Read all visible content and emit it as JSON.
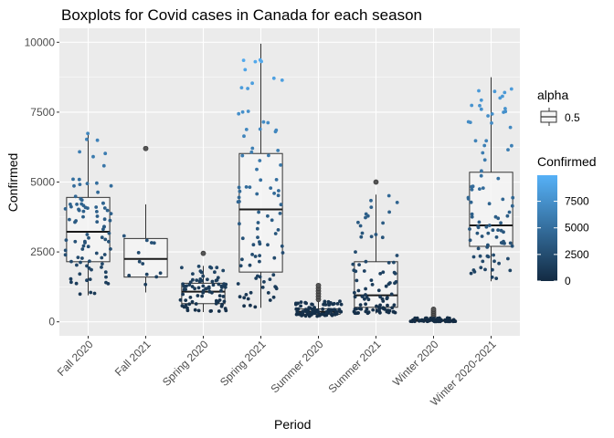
{
  "chart_data": {
    "type": "boxplot",
    "title": "Boxplots for Covid cases in Canada for each season",
    "xlabel": "Period",
    "ylabel": "Confirmed",
    "ylim": [
      -500,
      10500
    ],
    "y_ticks": [
      0,
      2500,
      5000,
      7500,
      10000
    ],
    "y_tick_labels": [
      "0",
      "2500",
      "5000",
      "7500",
      "10000"
    ],
    "grid": true,
    "categories": [
      "Fall 2020",
      "Fall 2021",
      "Spring 2020",
      "Spring 2021",
      "Summer 2020",
      "Summer 2021",
      "Winter 2020",
      "Winter 2020-2021"
    ],
    "boxes": [
      {
        "category": "Fall 2020",
        "min": 950,
        "q1": 2150,
        "median": 3220,
        "q3": 4450,
        "max": 6780,
        "outliers": [],
        "n": 90
      },
      {
        "category": "Fall 2021",
        "min": 1050,
        "q1": 1600,
        "median": 2250,
        "q3": 2980,
        "max": 4200,
        "outliers": [
          6200
        ],
        "n": 12
      },
      {
        "category": "Spring 2020",
        "min": 350,
        "q1": 650,
        "median": 1080,
        "q3": 1380,
        "max": 2000,
        "outliers": [
          2450
        ],
        "n": 80
      },
      {
        "category": "Spring 2021",
        "min": 500,
        "q1": 1780,
        "median": 4020,
        "q3": 6020,
        "max": 9950,
        "outliers": [],
        "n": 90
      },
      {
        "category": "Summer 2020",
        "min": 200,
        "q1": 270,
        "median": 360,
        "q3": 460,
        "max": 750,
        "outliers": [
          800,
          900,
          1000,
          1100,
          1200,
          1300
        ],
        "n": 92
      },
      {
        "category": "Summer 2021",
        "min": 300,
        "q1": 520,
        "median": 950,
        "q3": 2150,
        "max": 4550,
        "outliers": [
          5000
        ],
        "n": 92
      },
      {
        "category": "Winter 2020",
        "min": 10,
        "q1": 20,
        "median": 40,
        "q3": 80,
        "max": 150,
        "outliers": [
          200,
          260,
          320,
          380,
          450
        ],
        "n": 70
      },
      {
        "category": "Winter 2020-2021",
        "min": 1450,
        "q1": 2700,
        "median": 3450,
        "q3": 5350,
        "max": 8750,
        "outliers": [],
        "n": 90
      }
    ],
    "legend": {
      "position": "right",
      "alpha": {
        "title": "alpha",
        "label": "0.5"
      },
      "colorbar": {
        "title": "Confirmed",
        "breaks": [
          0,
          2500,
          5000,
          7500
        ],
        "labels": [
          "0",
          "2500",
          "5000",
          "7500"
        ],
        "range": [
          0,
          9950
        ],
        "low_color": "#132B43",
        "high_color": "#56B1F7"
      }
    },
    "colors": {
      "panel_background": "#EBEBEB",
      "grid_major": "#FFFFFF",
      "box_fill": "#F5F5F5",
      "box_line": "#333333",
      "outlier": "#555555"
    }
  }
}
